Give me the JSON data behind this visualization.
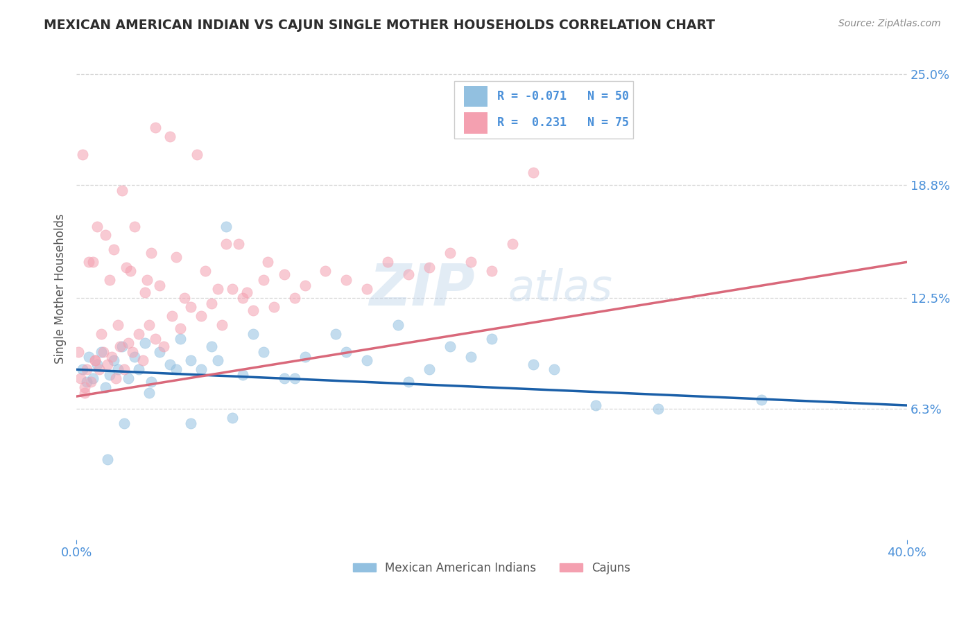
{
  "title": "MEXICAN AMERICAN INDIAN VS CAJUN SINGLE MOTHER HOUSEHOLDS CORRELATION CHART",
  "source": "Source: ZipAtlas.com",
  "ylabel": "Single Mother Households",
  "watermark_zip": "ZIP",
  "watermark_atlas": "atlas",
  "legend_blue_r": "-0.071",
  "legend_blue_n": "50",
  "legend_pink_r": "0.231",
  "legend_pink_n": "75",
  "legend_label_blue": "Mexican American Indians",
  "legend_label_pink": "Cajuns",
  "xlim": [
    0.0,
    40.0
  ],
  "ylim": [
    -1.0,
    27.0
  ],
  "yticks": [
    6.3,
    12.5,
    18.8,
    25.0
  ],
  "ytick_labels": [
    "6.3%",
    "12.5%",
    "18.8%",
    "25.0%"
  ],
  "xticks": [
    0.0,
    40.0
  ],
  "xtick_labels": [
    "0.0%",
    "40.0%"
  ],
  "color_blue": "#92c0e0",
  "color_pink": "#f4a0b0",
  "color_trend_blue": "#1a5fa8",
  "color_trend_pink": "#d9687a",
  "background_color": "#ffffff",
  "grid_color": "#cccccc",
  "title_color": "#2d2d2d",
  "axis_label_color": "#555555",
  "tick_color": "#4a90d9",
  "source_color": "#888888",
  "blue_x": [
    0.3,
    0.5,
    0.6,
    0.8,
    1.0,
    1.2,
    1.4,
    1.6,
    1.8,
    2.0,
    2.2,
    2.5,
    2.8,
    3.0,
    3.3,
    3.6,
    4.0,
    4.5,
    5.0,
    5.5,
    6.0,
    6.5,
    7.2,
    8.0,
    9.0,
    10.0,
    11.0,
    12.5,
    14.0,
    15.5,
    17.0,
    18.0,
    20.0,
    22.0,
    25.0,
    3.5,
    4.8,
    6.8,
    8.5,
    10.5,
    13.0,
    16.0,
    19.0,
    23.0,
    28.0,
    33.0,
    5.5,
    7.5,
    2.3,
    1.5
  ],
  "blue_y": [
    8.5,
    7.8,
    9.2,
    8.0,
    8.8,
    9.5,
    7.5,
    8.2,
    9.0,
    8.5,
    9.8,
    8.0,
    9.2,
    8.5,
    10.0,
    7.8,
    9.5,
    8.8,
    10.2,
    9.0,
    8.5,
    9.8,
    16.5,
    8.2,
    9.5,
    8.0,
    9.2,
    10.5,
    9.0,
    11.0,
    8.5,
    9.8,
    10.2,
    8.8,
    6.5,
    7.2,
    8.5,
    9.0,
    10.5,
    8.0,
    9.5,
    7.8,
    9.2,
    8.5,
    6.3,
    6.8,
    5.5,
    5.8,
    5.5,
    3.5
  ],
  "pink_x": [
    0.2,
    0.4,
    0.5,
    0.7,
    0.9,
    1.1,
    1.3,
    1.5,
    1.7,
    1.9,
    2.1,
    2.3,
    2.5,
    2.7,
    3.0,
    3.2,
    3.5,
    3.8,
    4.2,
    4.6,
    5.0,
    5.5,
    6.0,
    6.5,
    7.0,
    7.5,
    8.0,
    8.5,
    9.0,
    9.5,
    10.0,
    10.5,
    11.0,
    12.0,
    13.0,
    14.0,
    15.0,
    16.0,
    17.0,
    18.0,
    19.0,
    20.0,
    21.0,
    0.6,
    1.0,
    1.4,
    1.8,
    2.2,
    2.6,
    3.3,
    4.0,
    5.2,
    6.8,
    8.2,
    3.8,
    4.5,
    5.8,
    7.2,
    2.8,
    0.3,
    0.8,
    1.6,
    2.4,
    3.6,
    4.8,
    6.2,
    7.8,
    9.2,
    22.0,
    0.1,
    0.9,
    1.2,
    2.0,
    3.4,
    0.4
  ],
  "pink_y": [
    8.0,
    7.2,
    8.5,
    7.8,
    9.0,
    8.5,
    9.5,
    8.8,
    9.2,
    8.0,
    9.8,
    8.5,
    10.0,
    9.5,
    10.5,
    9.0,
    11.0,
    10.2,
    9.8,
    11.5,
    10.8,
    12.0,
    11.5,
    12.2,
    11.0,
    13.0,
    12.5,
    11.8,
    13.5,
    12.0,
    13.8,
    12.5,
    13.2,
    14.0,
    13.5,
    13.0,
    14.5,
    13.8,
    14.2,
    15.0,
    14.5,
    14.0,
    15.5,
    14.5,
    16.5,
    16.0,
    15.2,
    18.5,
    14.0,
    12.8,
    13.2,
    12.5,
    13.0,
    12.8,
    22.0,
    21.5,
    20.5,
    15.5,
    16.5,
    20.5,
    14.5,
    13.5,
    14.2,
    15.0,
    14.8,
    14.0,
    15.5,
    14.5,
    19.5,
    9.5,
    9.0,
    10.5,
    11.0,
    13.5,
    7.5
  ]
}
